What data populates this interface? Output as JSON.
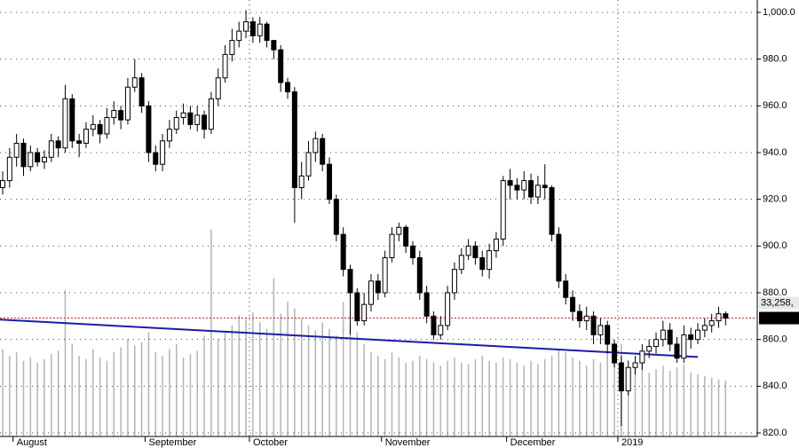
{
  "chart_data": {
    "type": "candlestick",
    "categories": [
      null,
      null,
      "August",
      null,
      null,
      null,
      null,
      null,
      null,
      null,
      null,
      null,
      null,
      null,
      null,
      null,
      null,
      null,
      null,
      null,
      null,
      "September",
      null,
      null,
      null,
      null,
      null,
      null,
      null,
      null,
      null,
      null,
      null,
      null,
      null,
      null,
      "October",
      null,
      null,
      null,
      null,
      null,
      null,
      null,
      null,
      null,
      null,
      null,
      null,
      null,
      null,
      null,
      null,
      null,
      null,
      "November",
      null,
      null,
      null,
      null,
      null,
      null,
      null,
      null,
      null,
      null,
      null,
      null,
      null,
      null,
      null,
      null,
      null,
      "December",
      null,
      null,
      null,
      null,
      null,
      null,
      null,
      null,
      null,
      null,
      null,
      null,
      null,
      null,
      null,
      "2019",
      null,
      null,
      null,
      null,
      null,
      null,
      null,
      null,
      null,
      null,
      null,
      null,
      null,
      null,
      null
    ],
    "open": [
      925,
      928,
      938,
      944,
      934,
      940,
      936,
      938,
      945,
      942,
      963,
      945,
      944,
      950,
      952,
      948,
      955,
      958,
      954,
      968,
      972,
      960,
      940,
      935,
      945,
      950,
      955,
      957,
      952,
      956,
      950,
      963,
      972,
      982,
      988,
      992,
      996,
      990,
      995,
      988,
      984,
      970,
      966,
      925,
      930,
      940,
      946,
      935,
      920,
      905,
      890,
      880,
      868,
      875,
      885,
      880,
      895,
      905,
      908,
      900,
      895,
      880,
      870,
      862,
      866,
      880,
      890,
      896,
      900,
      895,
      890,
      898,
      903,
      928,
      926,
      924,
      928,
      921,
      926,
      925,
      905,
      885,
      878,
      872,
      868,
      870,
      862,
      866,
      858,
      850,
      838,
      848,
      850,
      855,
      857,
      860,
      864,
      858,
      852,
      862,
      860,
      864,
      866,
      868,
      871
    ],
    "high": [
      932,
      942,
      948,
      946,
      943,
      942,
      941,
      948,
      947,
      969,
      965,
      948,
      953,
      956,
      954,
      959,
      962,
      960,
      972,
      980,
      974,
      962,
      943,
      948,
      954,
      958,
      961,
      960,
      960,
      958,
      966,
      976,
      986,
      993,
      996,
      1001,
      998,
      998,
      996,
      988,
      986,
      972,
      968,
      936,
      945,
      949,
      948,
      938,
      922,
      908,
      892,
      882,
      880,
      888,
      888,
      898,
      908,
      910,
      909,
      902,
      898,
      883,
      872,
      870,
      883,
      893,
      899,
      903,
      902,
      898,
      901,
      906,
      930,
      933,
      929,
      932,
      931,
      930,
      935,
      926,
      908,
      888,
      881,
      875,
      874,
      872,
      869,
      868,
      860,
      853,
      851,
      853,
      858,
      860,
      863,
      868,
      867,
      861,
      866,
      865,
      867,
      869,
      871,
      874,
      872
    ],
    "low": [
      922,
      925,
      934,
      930,
      932,
      934,
      933,
      936,
      938,
      940,
      942,
      938,
      942,
      947,
      944,
      946,
      952,
      950,
      952,
      966,
      957,
      936,
      932,
      932,
      942,
      948,
      952,
      950,
      949,
      946,
      948,
      960,
      970,
      979,
      985,
      989,
      987,
      987,
      985,
      980,
      966,
      963,
      910,
      920,
      928,
      936,
      932,
      918,
      902,
      887,
      862,
      866,
      866,
      872,
      877,
      878,
      893,
      902,
      897,
      892,
      877,
      867,
      860,
      860,
      864,
      877,
      888,
      894,
      892,
      887,
      886,
      895,
      900,
      920,
      920,
      920,
      918,
      918,
      920,
      902,
      882,
      875,
      868,
      865,
      864,
      858,
      858,
      854,
      848,
      823,
      836,
      845,
      847,
      852,
      854,
      857,
      855,
      850,
      850,
      856,
      858,
      861,
      863,
      865,
      866
    ],
    "close": [
      928,
      938,
      944,
      934,
      940,
      936,
      938,
      945,
      942,
      963,
      945,
      944,
      950,
      952,
      948,
      955,
      958,
      954,
      968,
      972,
      960,
      940,
      935,
      945,
      950,
      955,
      957,
      952,
      956,
      950,
      963,
      972,
      982,
      988,
      992,
      996,
      990,
      995,
      988,
      984,
      970,
      966,
      925,
      930,
      940,
      946,
      935,
      920,
      905,
      890,
      880,
      868,
      875,
      885,
      880,
      895,
      905,
      908,
      900,
      895,
      880,
      870,
      862,
      866,
      880,
      890,
      896,
      900,
      895,
      890,
      898,
      903,
      928,
      926,
      924,
      928,
      921,
      926,
      925,
      905,
      885,
      878,
      872,
      868,
      870,
      862,
      866,
      858,
      850,
      838,
      848,
      850,
      855,
      857,
      860,
      864,
      858,
      852,
      862,
      860,
      864,
      866,
      868,
      871,
      869.16
    ],
    "volume": [
      52000,
      48000,
      50000,
      45000,
      47000,
      44000,
      46000,
      49000,
      51000,
      87000,
      55000,
      48000,
      46000,
      52000,
      47000,
      45000,
      50000,
      53000,
      58000,
      54000,
      56000,
      62000,
      50000,
      48000,
      52000,
      55000,
      47000,
      49000,
      51000,
      60000,
      123000,
      58000,
      62000,
      66000,
      72000,
      70000,
      74000,
      68000,
      64000,
      94000,
      73000,
      80000,
      76000,
      70000,
      66000,
      63000,
      68000,
      64000,
      60000,
      80000,
      66000,
      62000,
      55000,
      50000,
      48000,
      46000,
      50000,
      47000,
      44000,
      45000,
      48000,
      46000,
      44000,
      42000,
      45000,
      47000,
      44000,
      43000,
      46000,
      48000,
      45000,
      44000,
      47000,
      46000,
      44000,
      42000,
      45000,
      43000,
      46000,
      48000,
      52000,
      50000,
      47000,
      45000,
      42000,
      46000,
      44000,
      50000,
      52000,
      55000,
      40000,
      42000,
      44000,
      38000,
      40000,
      42000,
      39000,
      41000,
      43000,
      38000,
      37000,
      36000,
      35000,
      34000,
      33258
    ],
    "last_volume_label": "33,258,",
    "volume_ylim": [
      0,
      250000
    ],
    "volume_color": "#b4b4b4",
    "up_color": "#ffffff",
    "down_color": "#000000",
    "ylim": [
      820,
      1000
    ],
    "yticks": [
      {
        "value": 820,
        "label": "820.0"
      },
      {
        "value": 840,
        "label": "840.0"
      },
      {
        "value": 860,
        "label": "860.0"
      },
      {
        "value": 880,
        "label": "880.0"
      },
      {
        "value": 900,
        "label": "900.0"
      },
      {
        "value": 920,
        "label": "920.0"
      },
      {
        "value": 940,
        "label": "940.0"
      },
      {
        "value": 960,
        "label": "960.0"
      },
      {
        "value": 980,
        "label": "980.0"
      },
      {
        "value": 1000,
        "label": "1,000.0"
      }
    ],
    "grid": true,
    "last_price_line_color": "#d02020",
    "trendline": {
      "color": "#1c1ca8",
      "start": [
        0,
        868.5
      ],
      "end": [
        100,
        852.5
      ]
    }
  }
}
